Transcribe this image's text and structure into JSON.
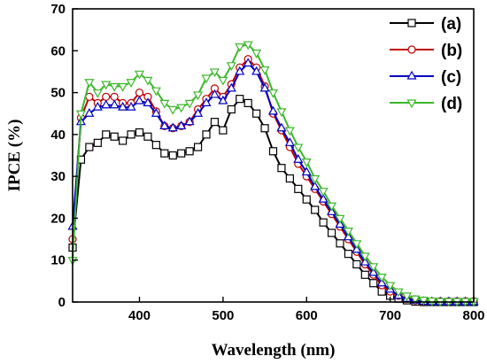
{
  "chart_data": {
    "type": "line",
    "xlabel": "Wavelength (nm)",
    "ylabel": "IPCE (%)",
    "xlim": [
      320,
      800
    ],
    "ylim": [
      0,
      70
    ],
    "xticks": [
      400,
      500,
      600,
      700,
      800
    ],
    "yticks": [
      0,
      10,
      20,
      30,
      40,
      50,
      60,
      70
    ],
    "legend_position": "top-right",
    "grid": false,
    "series": [
      {
        "name": "(a)",
        "color": "#000000",
        "marker": "square",
        "x": [
          320,
          330,
          340,
          350,
          360,
          370,
          380,
          390,
          400,
          410,
          420,
          430,
          440,
          450,
          460,
          470,
          480,
          490,
          500,
          510,
          520,
          530,
          540,
          550,
          560,
          570,
          580,
          590,
          600,
          610,
          620,
          630,
          640,
          650,
          660,
          670,
          680,
          690,
          700,
          710,
          720,
          730,
          740,
          750,
          760,
          770,
          780,
          790,
          800
        ],
        "y": [
          13,
          34,
          37,
          38,
          40,
          39.5,
          38.5,
          40,
          40.5,
          39.5,
          37.5,
          35.5,
          35,
          35.5,
          36,
          37,
          40,
          43,
          41,
          46,
          48.5,
          47.5,
          45,
          41.5,
          36,
          32,
          29.5,
          27,
          24.5,
          22,
          19,
          16.5,
          14,
          11.5,
          9,
          6.5,
          4.5,
          2.5,
          1.5,
          0.8,
          0.4,
          0.1,
          0,
          0,
          0,
          0,
          0,
          0,
          0
        ]
      },
      {
        "name": "(b)",
        "color": "#c00000",
        "marker": "circle",
        "x": [
          320,
          330,
          340,
          350,
          360,
          370,
          380,
          390,
          400,
          410,
          420,
          430,
          440,
          450,
          460,
          470,
          480,
          490,
          500,
          510,
          520,
          530,
          540,
          550,
          560,
          570,
          580,
          590,
          600,
          610,
          620,
          630,
          640,
          650,
          660,
          670,
          680,
          690,
          700,
          710,
          720,
          730,
          740,
          750,
          760,
          770,
          780,
          790,
          800
        ],
        "y": [
          15,
          44,
          49,
          47.5,
          49,
          49,
          47.5,
          47.5,
          50,
          49,
          45.5,
          42,
          41.5,
          42,
          43,
          46,
          48.5,
          51,
          49,
          52,
          56,
          58,
          56,
          51.5,
          45,
          41,
          37,
          33,
          30,
          27,
          24,
          21,
          18,
          15,
          12,
          9,
          6.5,
          4,
          2.5,
          1.5,
          0.8,
          0.4,
          0.2,
          0.2,
          0.2,
          0.2,
          0.2,
          0.2,
          0.2
        ]
      },
      {
        "name": "(c)",
        "color": "#0000c0",
        "marker": "triangle-up",
        "x": [
          320,
          330,
          340,
          350,
          360,
          370,
          380,
          390,
          400,
          410,
          420,
          430,
          440,
          450,
          460,
          470,
          480,
          490,
          500,
          510,
          520,
          530,
          540,
          550,
          560,
          570,
          580,
          590,
          600,
          610,
          620,
          630,
          640,
          650,
          660,
          670,
          680,
          690,
          700,
          710,
          720,
          730,
          740,
          750,
          760,
          770,
          780,
          790,
          800
        ],
        "y": [
          18,
          43,
          45,
          46.5,
          47,
          47,
          46.5,
          46.5,
          48,
          47.5,
          45,
          42,
          41.5,
          42,
          43,
          45,
          47.5,
          49.5,
          48,
          51,
          55,
          57,
          55,
          51,
          45.5,
          41.5,
          38,
          34,
          31,
          27.5,
          24.5,
          21.5,
          18.5,
          15.5,
          12.5,
          9.5,
          7,
          4.5,
          3,
          1.5,
          0.8,
          0.4,
          0.1,
          0,
          0,
          0,
          0,
          0,
          0
        ]
      },
      {
        "name": "(d)",
        "color": "#3cb82a",
        "marker": "triangle-down",
        "x": [
          320,
          330,
          340,
          350,
          360,
          370,
          380,
          390,
          400,
          410,
          420,
          430,
          440,
          450,
          460,
          470,
          480,
          490,
          500,
          510,
          520,
          530,
          540,
          550,
          560,
          570,
          580,
          590,
          600,
          610,
          620,
          630,
          640,
          650,
          660,
          670,
          680,
          690,
          700,
          710,
          720,
          730,
          740,
          750,
          760,
          770,
          780,
          790,
          800
        ],
        "y": [
          10,
          45,
          52.5,
          50,
          52,
          51.5,
          51.5,
          52.5,
          54.5,
          53,
          50.5,
          47.5,
          46,
          46.5,
          47.5,
          49.5,
          53.5,
          55,
          53,
          56.5,
          61,
          61.5,
          59.5,
          55.5,
          50,
          45.5,
          41,
          37,
          33.5,
          29.5,
          26.5,
          23,
          20,
          17,
          14,
          11,
          8.5,
          6,
          4,
          2.5,
          1.5,
          0.8,
          0.5,
          0.3,
          0.2,
          0.2,
          0.2,
          0.2,
          0.2
        ]
      }
    ]
  }
}
